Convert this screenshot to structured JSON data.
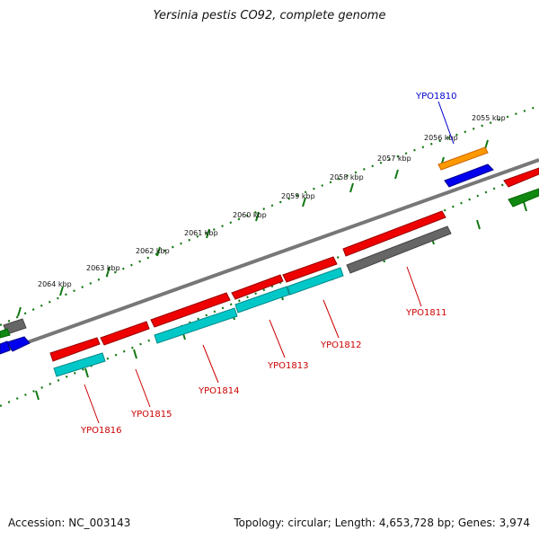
{
  "title": "Yersinia pestis CO92, complete genome",
  "footer": {
    "accession": "Accession: NC_003143",
    "summary": "Topology: circular; Length: 4,653,728 bp; Genes: 3,974"
  },
  "ruler_labels": [
    "2055 kbp",
    "2056 kbp",
    "2057 kbp",
    "2058 kbp",
    "2059 kbp",
    "2060 kbp",
    "2061 kbp",
    "2062 kbp",
    "2063 kbp",
    "2064 kbp"
  ],
  "gene_labels": [
    {
      "text": "YPO1810",
      "color": "#0000cc"
    },
    {
      "text": "YPO1811",
      "color": "#cc0000"
    },
    {
      "text": "YPO1812",
      "color": "#cc0000"
    },
    {
      "text": "YPO1813",
      "color": "#cc0000"
    },
    {
      "text": "YPO1814",
      "color": "#cc0000"
    },
    {
      "text": "YPO1815",
      "color": "#cc0000"
    },
    {
      "text": "YPO1816",
      "color": "#cc0000"
    }
  ],
  "colors": {
    "forward_cds": "#0000ee",
    "reverse_cds": "#ee0000",
    "rna": "#00c8c8",
    "orange_feature": "#ff9900",
    "green_feature": "#118811",
    "gray_feature": "#666666",
    "backbone": "#777777",
    "ruler": "#117711"
  }
}
